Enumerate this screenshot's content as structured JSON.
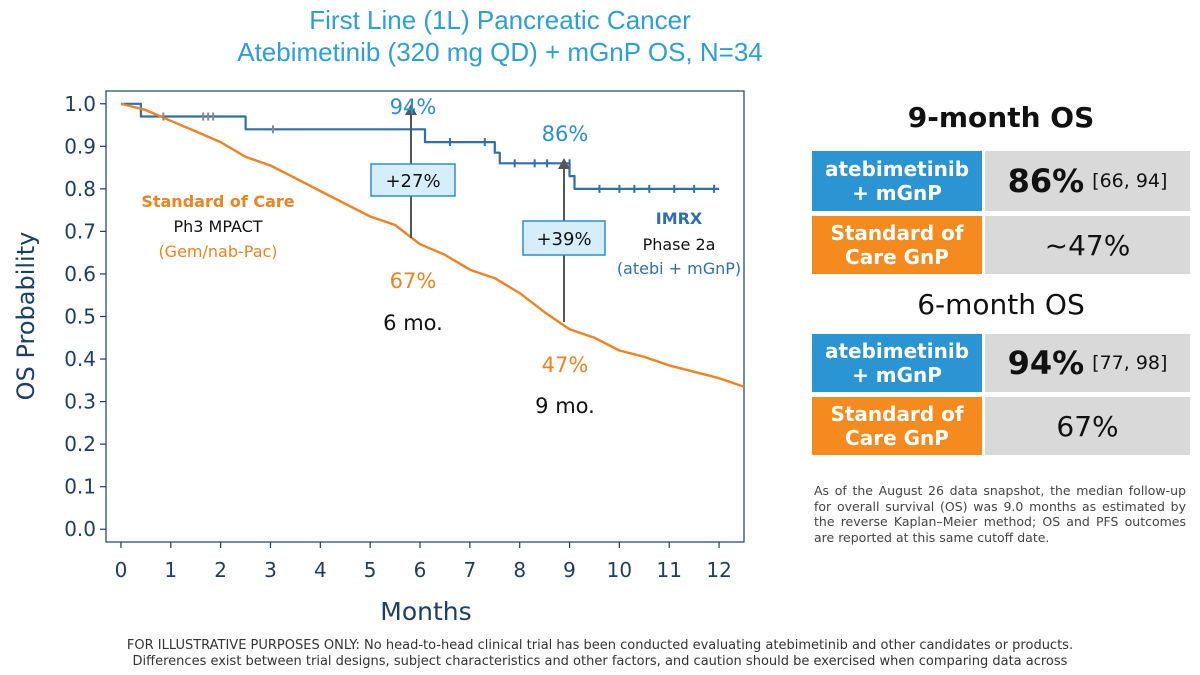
{
  "chart_data": {
    "type": "line",
    "title": "First Line (1L) Pancreatic Cancer",
    "subtitle": "Atebimetinib (320 mg QD) + mGnP OS, N=34",
    "xlabel": "Months",
    "ylabel": "OS Probability",
    "xlim": [
      -0.3,
      12.5
    ],
    "ylim": [
      -0.03,
      1.03
    ],
    "x_ticks": [
      "0",
      "1",
      "2",
      "3",
      "4",
      "5",
      "6",
      "7",
      "8",
      "9",
      "10",
      "11",
      "12"
    ],
    "y_ticks": [
      "0.0",
      "0.1",
      "0.2",
      "0.3",
      "0.4",
      "0.5",
      "0.6",
      "0.7",
      "0.8",
      "0.9",
      "1.0"
    ],
    "legend": "inline labels",
    "series": [
      {
        "color": "#2f6fae",
        "x": [
          0,
          0.4,
          0.4,
          2.5,
          2.5,
          6.1,
          6.1,
          7.5,
          7.5,
          7.6,
          7.6,
          9.0,
          9.0,
          9.1,
          9.1,
          12.0
        ],
        "y": [
          1.0,
          1.0,
          0.97,
          0.97,
          0.94,
          0.94,
          0.91,
          0.91,
          0.885,
          0.885,
          0.86,
          0.86,
          0.83,
          0.83,
          0.8,
          0.8
        ],
        "censor_x": [
          0.85,
          1.65,
          1.75,
          1.85,
          3.05,
          6.6,
          7.3,
          7.9,
          8.3,
          8.55,
          9.0,
          9.6,
          10.0,
          10.3,
          10.6,
          11.1,
          11.5,
          11.9
        ],
        "censor_y": [
          0.97,
          0.97,
          0.97,
          0.97,
          0.94,
          0.91,
          0.91,
          0.86,
          0.86,
          0.86,
          0.86,
          0.8,
          0.8,
          0.8,
          0.8,
          0.8,
          0.8,
          0.8
        ]
      },
      {
        "color": "#f08220",
        "x": [
          0,
          0.5,
          1.0,
          1.5,
          2.0,
          2.5,
          3.0,
          3.5,
          4.0,
          4.5,
          5.0,
          5.5,
          6.0,
          6.5,
          7.0,
          7.5,
          8.0,
          8.5,
          9.0,
          9.5,
          10.0,
          10.5,
          11.0,
          11.5,
          12.0,
          12.5
        ],
        "y": [
          1.0,
          0.985,
          0.96,
          0.935,
          0.91,
          0.875,
          0.855,
          0.825,
          0.795,
          0.765,
          0.735,
          0.715,
          0.67,
          0.645,
          0.61,
          0.59,
          0.555,
          0.51,
          0.47,
          0.45,
          0.42,
          0.405,
          0.385,
          0.37,
          0.355,
          0.335
        ]
      }
    ],
    "annotations": {
      "soc_label": "Standard of Care",
      "soc_trial": "Ph3 MPACT",
      "soc_regimen": "(Gem/nab-Pac)",
      "imrx_label": "IMRX",
      "imrx_phase": "Phase 2a",
      "imrx_regimen": "(atebi + mGnP)",
      "pct_94": "94%",
      "pct_86": "86%",
      "pct_67": "67%",
      "pct_47": "47%",
      "mo6": "6 mo.",
      "mo9": "9 mo.",
      "delta6": "+27%",
      "delta9": "+39%"
    }
  },
  "table": {
    "nine_month": {
      "header": "9-month OS",
      "row1_label": "atebimetinib\n+ mGnP",
      "row1_value": "86%",
      "row1_ci": "[66, 94]",
      "row2_label": "Standard of\nCare GnP",
      "row2_value": "~47%"
    },
    "six_month": {
      "header": "6-month OS",
      "row1_label": "atebimetinib\n+ mGnP",
      "row1_value": "94%",
      "row1_ci": "[77, 98]",
      "row2_label": "Standard of\nCare GnP",
      "row2_value": "67%"
    }
  },
  "note": "As of the August 26 data snapshot, the median follow-up for overall survival (OS) was 9.0 months as estimated by the reverse Kaplan–Meier method; OS and PFS outcomes are reported at this same cutoff date.",
  "footer": {
    "line1": "FOR ILLUSTRATIVE PURPOSES ONLY: No head-to-head clinical trial has been conducted evaluating atebimetinib and other candidates or products.",
    "line2": "Differences exist between trial designs, subject characteristics and other factors, and caution should be exercised when comparing data across"
  },
  "colors": {
    "title": "#2a9fd8",
    "imrx_line": "#2f6fae",
    "soc_line": "#f08220",
    "axis": "#1c3f66",
    "table_blue": "#2b95d3",
    "table_orange": "#f58a1f",
    "table_gray": "#d9d9d9",
    "delta_box": "#d6eef9"
  }
}
